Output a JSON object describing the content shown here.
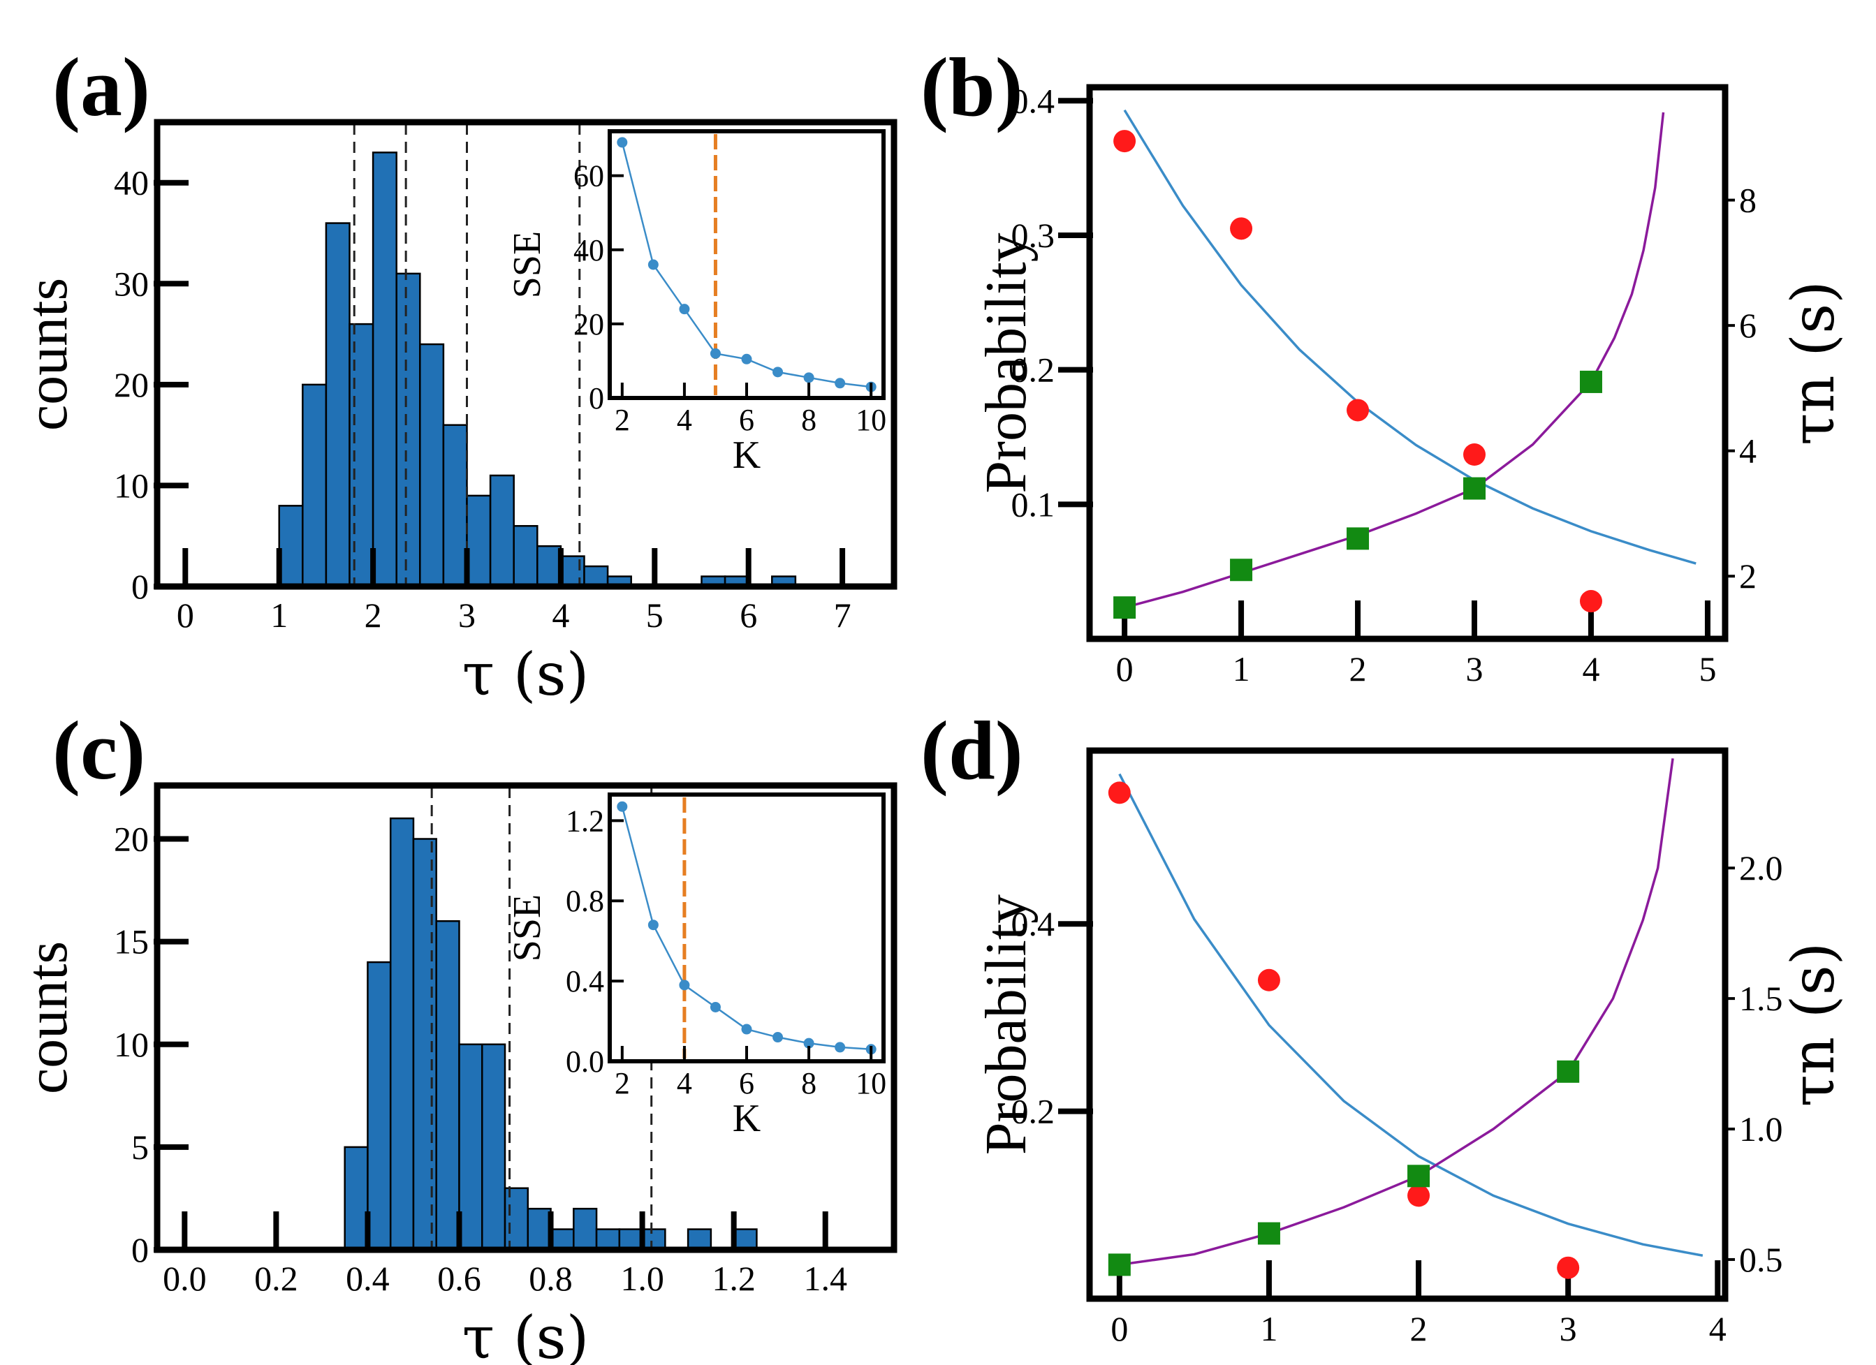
{
  "panels": {
    "a": {
      "letter": "(a)"
    },
    "b": {
      "letter": "(b)"
    },
    "c": {
      "letter": "(c)"
    },
    "d": {
      "letter": "(d)"
    }
  },
  "colors": {
    "bar": "#2171b5",
    "line_blue": "#3a8cc8",
    "line_purple": "#8b1a9b",
    "point_red": "#ff1a1a",
    "point_green": "#128a12",
    "inset_dash": "#e67e22"
  },
  "chart_data": [
    {
      "id": "a",
      "type": "bar",
      "title": "",
      "xlabel": "τ (s)",
      "ylabel": "counts",
      "xlim": [
        -0.3,
        7.55
      ],
      "ylim": [
        0,
        46
      ],
      "xticks": [
        "0",
        "1",
        "2",
        "3",
        "4",
        "5",
        "6",
        "7"
      ],
      "yticks": [
        "0",
        "10",
        "20",
        "30",
        "40"
      ],
      "bin_start": 1.0,
      "bin_width": 0.25,
      "values": [
        8,
        20,
        36,
        26,
        43,
        31,
        24,
        16,
        9,
        11,
        6,
        4,
        3,
        2,
        1,
        0,
        0,
        0,
        1,
        1,
        0,
        1
      ],
      "dashed_lines": [
        1.8,
        2.35,
        3.0,
        4.2
      ],
      "inset": {
        "type": "line",
        "xlabel": "K",
        "ylabel": "SSE",
        "xlim": [
          1.6,
          10.4
        ],
        "ylim": [
          0,
          72
        ],
        "xticks": [
          "2",
          "4",
          "6",
          "8",
          "10"
        ],
        "yticks": [
          "0",
          "20",
          "40",
          "60"
        ],
        "x": [
          2,
          3,
          4,
          5,
          6,
          7,
          8,
          9,
          10
        ],
        "y": [
          69,
          36,
          24,
          12,
          10.5,
          7,
          5.5,
          4,
          3
        ],
        "dashed_x": 5
      }
    },
    {
      "id": "b",
      "type": "scatter",
      "title": "",
      "xlabel": "",
      "ylabel": "Probability",
      "y2label": "τn (s)",
      "xlim": [
        -0.3,
        5.15
      ],
      "ylim": [
        0.0,
        0.41
      ],
      "y2lim": [
        1.0,
        9.8
      ],
      "xticks": [
        "0",
        "1",
        "2",
        "3",
        "4",
        "5"
      ],
      "yticks": [
        "0.1",
        "0.2",
        "0.3",
        "0.4"
      ],
      "y2ticks": [
        "2",
        "4",
        "6",
        "8"
      ],
      "series": [
        {
          "name": "probability points",
          "x": [
            0,
            1,
            2,
            3,
            4
          ],
          "y": [
            0.37,
            0.305,
            0.17,
            0.137,
            0.028
          ]
        },
        {
          "name": "tau_n points",
          "x": [
            0,
            1,
            2,
            3,
            4
          ],
          "y": [
            1.5,
            2.1,
            2.6,
            3.4,
            5.1
          ]
        },
        {
          "name": "probability fit",
          "x": [
            0,
            0.5,
            1,
            1.5,
            2,
            2.5,
            3,
            3.5,
            4,
            4.5,
            4.9
          ],
          "y": [
            0.393,
            0.322,
            0.263,
            0.215,
            0.176,
            0.144,
            0.118,
            0.097,
            0.08,
            0.066,
            0.056
          ]
        },
        {
          "name": "tau_n fit",
          "x": [
            0,
            0.5,
            1,
            1.5,
            2,
            2.5,
            3,
            3.5,
            3.8,
            4.0,
            4.2,
            4.35,
            4.45,
            4.55,
            4.62
          ],
          "y": [
            1.5,
            1.75,
            2.05,
            2.35,
            2.65,
            3.0,
            3.4,
            4.1,
            4.7,
            5.1,
            5.8,
            6.5,
            7.2,
            8.2,
            9.4
          ]
        }
      ]
    },
    {
      "id": "c",
      "type": "bar",
      "title": "",
      "xlabel": "τ (s)",
      "ylabel": "counts",
      "xlim": [
        -0.06,
        1.55
      ],
      "ylim": [
        0,
        22.6
      ],
      "xticks": [
        "0.0",
        "0.2",
        "0.4",
        "0.6",
        "0.8",
        "1.0",
        "1.2",
        "1.4"
      ],
      "yticks": [
        "0",
        "5",
        "10",
        "15",
        "20"
      ],
      "bin_start": 0.35,
      "bin_width": 0.05,
      "values": [
        5,
        14,
        21,
        20,
        16,
        10,
        10,
        3,
        2,
        1,
        2,
        1,
        1,
        1,
        0,
        1,
        0,
        1
      ],
      "dashed_lines": [
        0.54,
        0.71,
        1.02
      ],
      "inset": {
        "type": "line",
        "xlabel": "K",
        "ylabel": "SSE",
        "xlim": [
          1.6,
          10.4
        ],
        "ylim": [
          0,
          1.33
        ],
        "xticks": [
          "2",
          "4",
          "6",
          "8",
          "10"
        ],
        "yticks": [
          "0.0",
          "0.4",
          "0.8",
          "1.2"
        ],
        "x": [
          2,
          3,
          4,
          5,
          6,
          7,
          8,
          9,
          10
        ],
        "y": [
          1.27,
          0.68,
          0.38,
          0.27,
          0.16,
          0.12,
          0.09,
          0.07,
          0.06
        ],
        "dashed_x": 4
      }
    },
    {
      "id": "d",
      "type": "scatter",
      "title": "",
      "xlabel": "",
      "ylabel": "Probability",
      "y2label": "τn (s)",
      "xlim": [
        -0.2,
        4.05
      ],
      "ylim": [
        0.0,
        0.585
      ],
      "y2lim": [
        0.35,
        2.45
      ],
      "xticks": [
        "0",
        "1",
        "2",
        "3",
        "4"
      ],
      "yticks": [
        "0.2",
        "0.4"
      ],
      "y2ticks": [
        "0.5",
        "1.0",
        "1.5",
        "2.0"
      ],
      "series": [
        {
          "name": "probability points",
          "x": [
            0,
            1,
            2,
            3
          ],
          "y": [
            0.54,
            0.34,
            0.11,
            0.033
          ]
        },
        {
          "name": "tau_n points",
          "x": [
            0,
            1,
            2,
            3
          ],
          "y": [
            0.48,
            0.6,
            0.82,
            1.22
          ]
        },
        {
          "name": "probability fit",
          "x": [
            0,
            0.5,
            1,
            1.5,
            2,
            2.5,
            3,
            3.5,
            3.9
          ],
          "y": [
            0.56,
            0.405,
            0.292,
            0.211,
            0.152,
            0.11,
            0.08,
            0.058,
            0.046
          ]
        },
        {
          "name": "tau_n fit",
          "x": [
            0,
            0.5,
            1,
            1.5,
            2,
            2.5,
            3,
            3.3,
            3.5,
            3.6,
            3.7
          ],
          "y": [
            0.48,
            0.52,
            0.6,
            0.7,
            0.82,
            1.0,
            1.22,
            1.5,
            1.8,
            2.0,
            2.42
          ]
        }
      ]
    }
  ]
}
